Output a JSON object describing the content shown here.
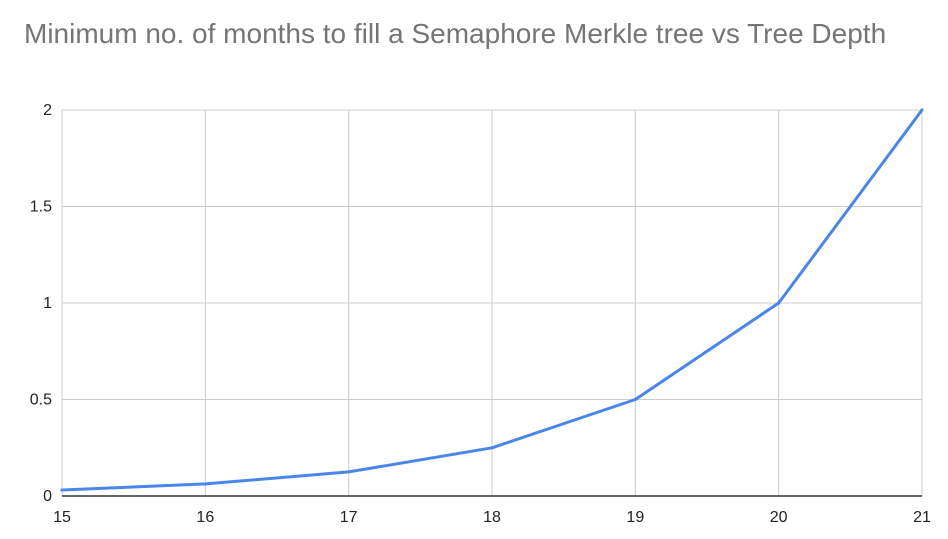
{
  "chart_data": {
    "type": "line",
    "title": "Minimum no. of months to fill a Semaphore Merkle tree vs Tree Depth",
    "xlabel": "",
    "ylabel": "",
    "x": [
      15,
      16,
      17,
      18,
      19,
      20,
      21
    ],
    "series": [
      {
        "values": [
          0.03125,
          0.0625,
          0.125,
          0.25,
          0.5,
          1,
          2
        ]
      }
    ],
    "xlim": [
      15,
      21
    ],
    "ylim": [
      0,
      2
    ],
    "x_ticks": [
      "15",
      "16",
      "17",
      "18",
      "19",
      "20",
      "21"
    ],
    "y_ticks": [
      "0",
      "0.5",
      "1",
      "1.5",
      "2"
    ],
    "grid": true,
    "legend": "none",
    "colors": {
      "line": "#4a86e8",
      "grid": "#cccccc",
      "axis": "#333333",
      "title": "#757575"
    }
  }
}
